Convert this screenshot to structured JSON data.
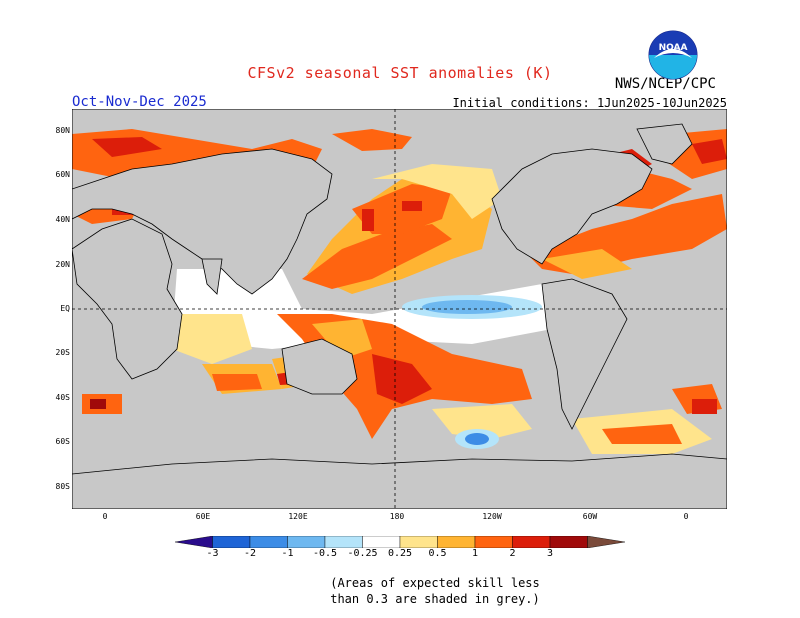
{
  "header": {
    "title": "CFSv2 seasonal SST anomalies (K)",
    "agency": "NWS/NCEP/CPC",
    "season": "Oct-Nov-Dec 2025",
    "initial_conditions": "Initial conditions: 1Jun2025-10Jun2025",
    "logo_text": "NOAA",
    "logo_icon": "noaa-logo-icon"
  },
  "axes": {
    "lat_labels": [
      "80N",
      "60N",
      "40N",
      "20N",
      "EQ",
      "20S",
      "40S",
      "60S",
      "80S"
    ],
    "lon_labels": [
      "0",
      "60E",
      "120E",
      "180",
      "120W",
      "60W",
      "0"
    ]
  },
  "colorbar": {
    "labels": [
      "-3",
      "-2",
      "-1",
      "-0.5",
      "-0.25",
      "0.25",
      "0.5",
      "1",
      "2",
      "3"
    ],
    "colors": [
      "#2a0c8c",
      "#1e64d6",
      "#3c8ce6",
      "#6eb8f0",
      "#b4e4fa",
      "#ffffff",
      "#ffe48c",
      "#ffb432",
      "#ff6410",
      "#dc1e0a",
      "#a00a0a",
      "#7a4a3a"
    ]
  },
  "notes": {
    "line1": "(Areas of expected skill less",
    "line2": "than 0.3 are shaded in grey.)"
  },
  "map_colors": {
    "ocean_grey": "#c8c8c8",
    "land": "#c8c8c8",
    "positive_strong": "#ff6410",
    "positive_moderate": "#ffb432",
    "positive_weak": "#ffe48c",
    "negative_weak": "#b4e4fa",
    "negative_moderate": "#6eb8f0"
  }
}
